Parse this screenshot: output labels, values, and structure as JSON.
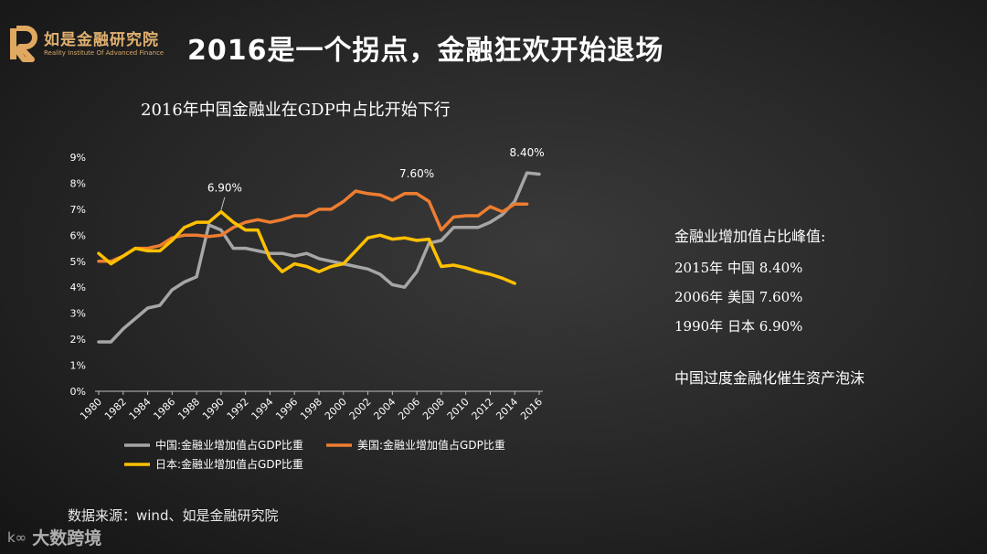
{
  "header": {
    "logo_cn": "如是金融研究院",
    "logo_en": "Reality Institute Of Advanced Finance",
    "title": "2016是一个拐点，金融狂欢开始退场"
  },
  "side": {
    "peak_heading": "金融业增加值占比峰值:",
    "peaks": [
      {
        "year": "2015年",
        "country": "中国",
        "value": "8.40%"
      },
      {
        "year": "2006年",
        "country": "美国",
        "value": "7.60%"
      },
      {
        "year": "1990年",
        "country": "日本",
        "value": "6.90%"
      }
    ],
    "note": "中国过度金融化催生资产泡沫"
  },
  "source": "数据来源：wind、如是金融研究院",
  "watermark": {
    "icon": "bigdata-logo-icon",
    "text": "大数跨境"
  },
  "chart_data": {
    "type": "line",
    "title": "2016年中国金融业在GDP中占比开始下行",
    "x_ticks": [
      "1980",
      "1982",
      "1984",
      "1986",
      "1988",
      "1990",
      "1992",
      "1994",
      "1996",
      "1998",
      "2000",
      "2002",
      "2004",
      "2006",
      "2008",
      "2010",
      "2012",
      "2014",
      "2016"
    ],
    "y_ticks": [
      "0%",
      "1%",
      "2%",
      "3%",
      "4%",
      "5%",
      "6%",
      "7%",
      "8%",
      "9%"
    ],
    "ylim": [
      0,
      9
    ],
    "xlim": [
      1980,
      2016
    ],
    "legend_position": "bottom",
    "grid": false,
    "series": [
      {
        "name": "中国:金融业增加值占GDP比重",
        "color": "#a6a6a6",
        "x": [
          1980,
          1981,
          1982,
          1983,
          1984,
          1985,
          1986,
          1987,
          1988,
          1989,
          1990,
          1991,
          1992,
          1993,
          1994,
          1995,
          1996,
          1997,
          1998,
          1999,
          2000,
          2001,
          2002,
          2003,
          2004,
          2005,
          2006,
          2007,
          2008,
          2009,
          2010,
          2011,
          2012,
          2013,
          2014,
          2015,
          2016
        ],
        "values": [
          1.9,
          1.9,
          2.4,
          2.8,
          3.2,
          3.3,
          3.9,
          4.2,
          4.4,
          6.4,
          6.2,
          5.5,
          5.5,
          5.4,
          5.3,
          5.3,
          5.2,
          5.3,
          5.1,
          5.0,
          4.9,
          4.8,
          4.7,
          4.5,
          4.1,
          4.0,
          4.6,
          5.7,
          5.8,
          6.3,
          6.3,
          6.3,
          6.5,
          6.8,
          7.3,
          8.4,
          8.35
        ]
      },
      {
        "name": "美国:金融业增加值占GDP比重",
        "color": "#ed7d31",
        "x": [
          1980,
          1981,
          1982,
          1983,
          1984,
          1985,
          1986,
          1987,
          1988,
          1989,
          1990,
          1991,
          1992,
          1993,
          1994,
          1995,
          1996,
          1997,
          1998,
          1999,
          2000,
          2001,
          2002,
          2003,
          2004,
          2005,
          2006,
          2007,
          2008,
          2009,
          2010,
          2011,
          2012,
          2013,
          2014,
          2015
        ],
        "values": [
          5.0,
          5.0,
          5.2,
          5.5,
          5.5,
          5.6,
          5.9,
          6.0,
          6.0,
          5.95,
          6.0,
          6.3,
          6.5,
          6.6,
          6.5,
          6.6,
          6.75,
          6.75,
          7.0,
          7.0,
          7.3,
          7.7,
          7.6,
          7.55,
          7.35,
          7.6,
          7.6,
          7.3,
          6.2,
          6.7,
          6.75,
          6.75,
          7.1,
          6.9,
          7.2,
          7.2
        ]
      },
      {
        "name": "日本:金融业增加值占GDP比重",
        "color": "#ffc000",
        "x": [
          1980,
          1981,
          1982,
          1983,
          1984,
          1985,
          1986,
          1987,
          1988,
          1989,
          1990,
          1991,
          1992,
          1993,
          1994,
          1995,
          1996,
          1997,
          1998,
          1999,
          2000,
          2001,
          2002,
          2003,
          2004,
          2005,
          2006,
          2007,
          2008,
          2009,
          2010,
          2011,
          2012,
          2013,
          2014
        ],
        "values": [
          5.3,
          4.9,
          5.2,
          5.5,
          5.4,
          5.4,
          5.8,
          6.3,
          6.5,
          6.5,
          6.9,
          6.5,
          6.2,
          6.2,
          5.1,
          4.6,
          4.9,
          4.8,
          4.6,
          4.8,
          4.9,
          5.4,
          5.9,
          6.0,
          5.85,
          5.9,
          5.8,
          5.85,
          4.8,
          4.85,
          4.75,
          4.6,
          4.5,
          4.35,
          4.15
        ]
      }
    ],
    "annotations": [
      {
        "text": "6.90%",
        "x": 1990,
        "y": 6.9
      },
      {
        "text": "7.60%",
        "x": 2006,
        "y": 7.6
      },
      {
        "text": "8.40%",
        "x": 2015,
        "y": 8.4
      }
    ]
  }
}
